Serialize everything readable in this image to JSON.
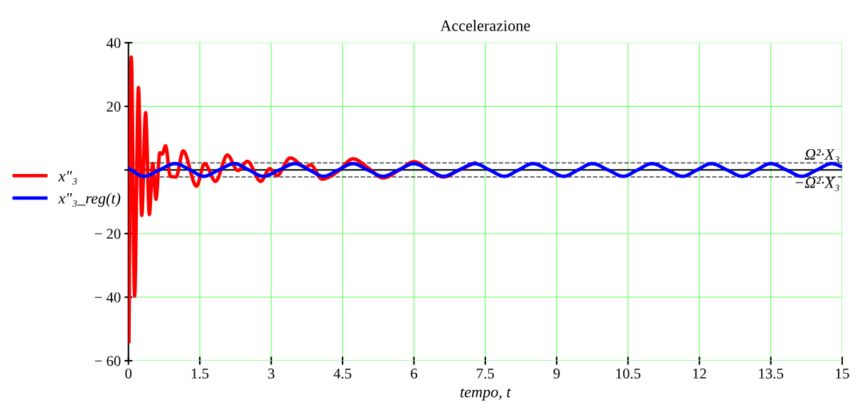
{
  "chart_data": {
    "type": "line",
    "title": "Accelerazione",
    "xlabel": "tempo, t",
    "xlim": [
      0,
      15
    ],
    "ylim": [
      -60,
      40
    ],
    "xticks": [
      0,
      1.5,
      3,
      4.5,
      6,
      7.5,
      9,
      10.5,
      12,
      13.5,
      15
    ],
    "yticks": [
      40,
      20,
      {
        "value": 0,
        "label": null
      },
      {
        "value": -20,
        "label": "− 20"
      },
      {
        "value": -40,
        "label": "− 40"
      },
      {
        "value": -60,
        "label": "− 60"
      }
    ],
    "grid": true,
    "legend": "left",
    "line_style": "solid",
    "marker": "none",
    "ref_lines": [
      {
        "axis": "y",
        "value": 2.2,
        "label": "Ω²·X₃",
        "color": "#555555",
        "line_style": "dashed"
      },
      {
        "axis": "y",
        "value": -2.2,
        "label": "−Ω²·X₃",
        "color": "#555555",
        "line_style": "dashed"
      }
    ],
    "series": [
      {
        "name": "x″₃",
        "color": "#ff0000",
        "x": [
          0.01,
          0.06,
          0.13,
          0.21,
          0.28,
          0.36,
          0.44,
          0.51,
          0.58,
          0.66,
          0.71,
          0.78,
          0.88,
          1.0,
          1.15,
          1.43,
          1.6,
          1.83,
          2.08,
          2.3,
          2.5,
          2.78,
          2.97,
          3.12,
          3.4,
          3.72,
          3.83,
          4.07,
          4.4,
          4.72,
          5.05,
          5.35,
          5.7,
          6.0,
          6.3,
          6.62,
          6.95,
          7.28
        ],
        "values": [
          -54,
          35.5,
          -39.7,
          25.9,
          -14.3,
          18,
          -14,
          2,
          -9.2,
          5.4,
          5,
          7.6,
          -2,
          -2.2,
          6,
          -5.1,
          2,
          -3.6,
          4.7,
          -0.2,
          2.7,
          -3.6,
          0.4,
          -1.8,
          3.8,
          0.9,
          1.6,
          -2.9,
          -0.5,
          3.5,
          0.5,
          -2.5,
          0,
          2.6,
          0.2,
          -2.2,
          0,
          2.2
        ]
      },
      {
        "name": "x″₃_reg(t)",
        "color": "#0000ff",
        "x": [
          0,
          0.33,
          0.65,
          0.98,
          1.3,
          1.58,
          1.9,
          2.23,
          2.53,
          2.83,
          3.17,
          3.5,
          3.8,
          4.1,
          4.41,
          4.72,
          5.03,
          5.35,
          5.68,
          6.0,
          6.31,
          6.62,
          6.95,
          7.28,
          7.59,
          7.9,
          8.2,
          8.5,
          8.83,
          9.15,
          9.45,
          9.75,
          10.08,
          10.4,
          10.7,
          11.0,
          11.33,
          11.65,
          11.95,
          12.25,
          12.58,
          12.9,
          13.2,
          13.5,
          13.83,
          14.15,
          14.47,
          14.78,
          15
        ],
        "values": [
          0.5,
          -2,
          0,
          2,
          0,
          -2,
          0,
          2,
          0,
          -2,
          0,
          2,
          0,
          -2,
          0,
          2,
          0,
          -2,
          0,
          2,
          0,
          -2,
          0,
          2,
          0,
          -2,
          0,
          2,
          0,
          -2,
          0,
          2,
          0,
          -2,
          0,
          2,
          0,
          -2,
          0,
          2,
          0,
          -2,
          0,
          2,
          0,
          -2,
          0,
          2,
          1
        ]
      }
    ]
  }
}
